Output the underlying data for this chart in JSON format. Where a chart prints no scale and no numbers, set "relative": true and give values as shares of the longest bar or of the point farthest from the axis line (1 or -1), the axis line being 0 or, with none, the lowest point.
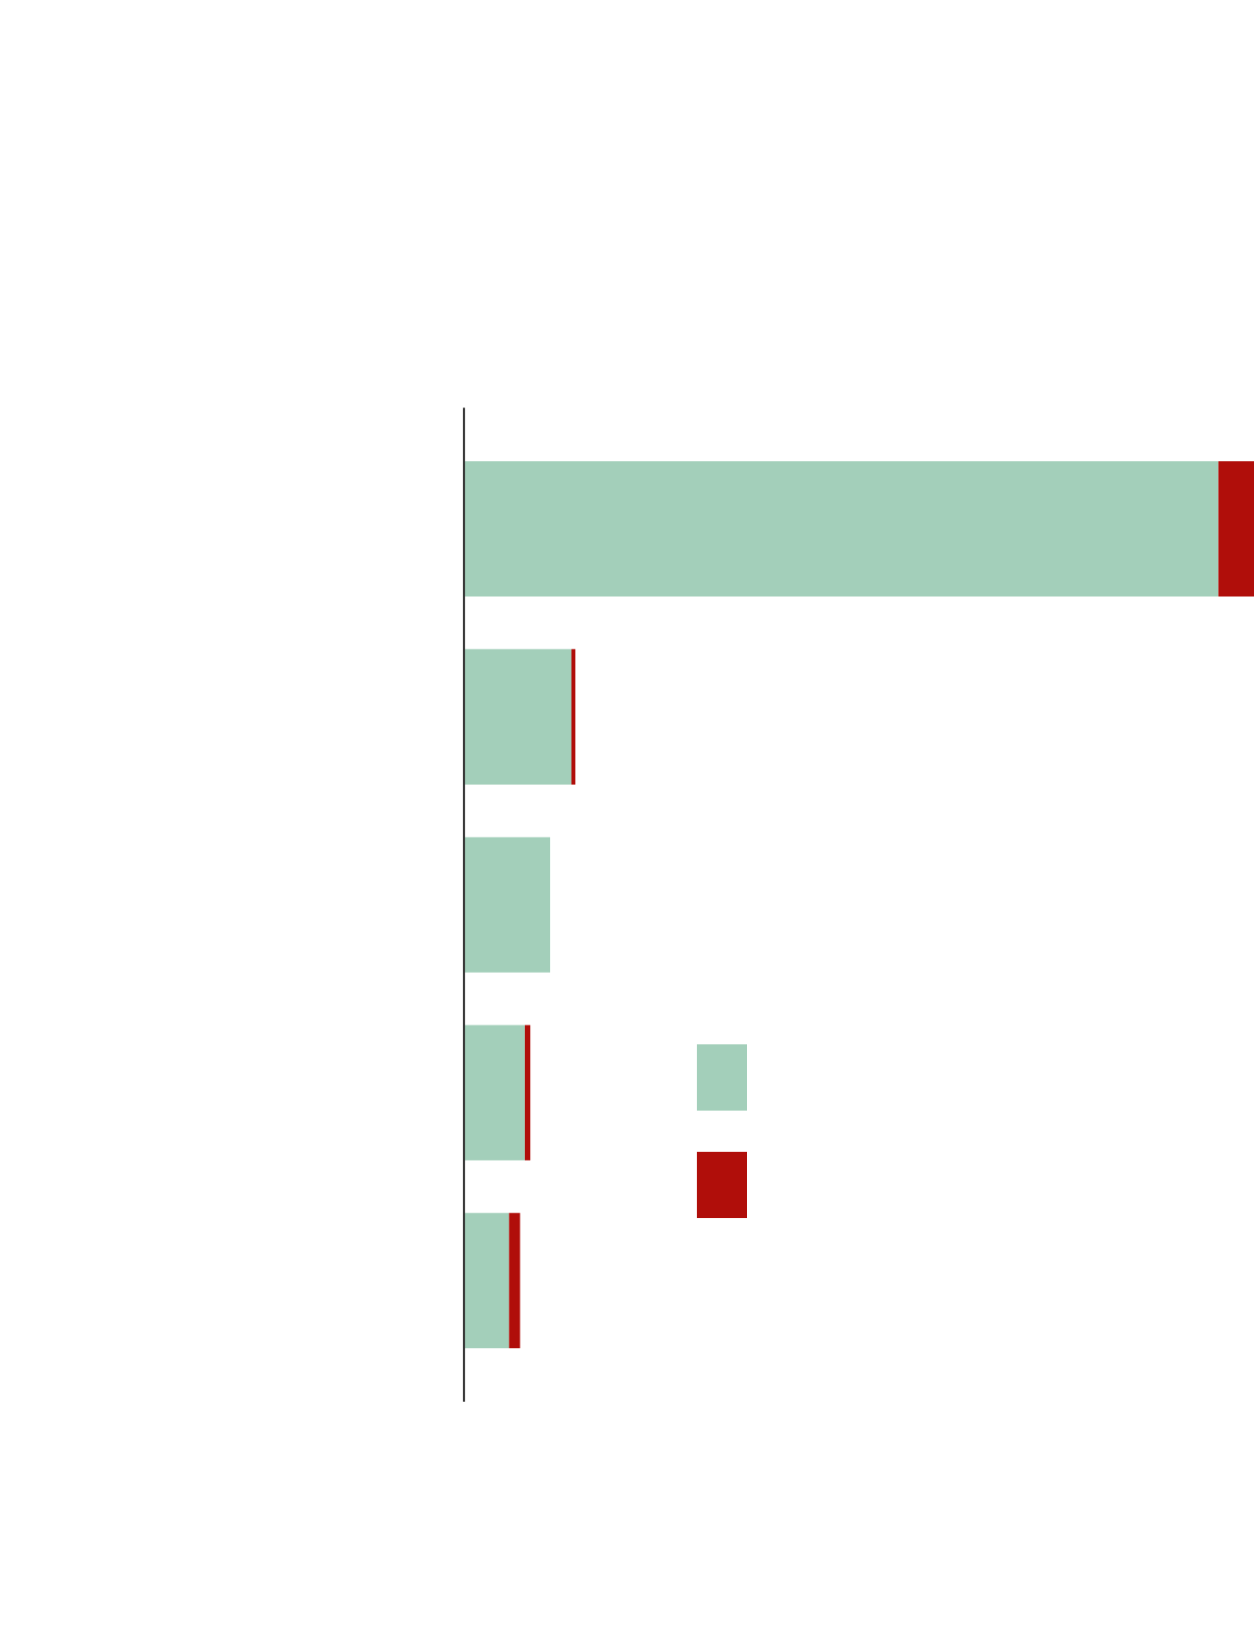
{
  "chart_data": {
    "type": "bar",
    "orientation": "horizontal",
    "stacked": true,
    "relative": true,
    "categories": [
      null,
      null,
      null,
      null,
      null
    ],
    "series": [
      {
        "color": "#a3cfba",
        "values": [
          0.955,
          0.136,
          0.109,
          0.077,
          0.057
        ]
      },
      {
        "color": "#b00e0a",
        "values": [
          0.045,
          0.005,
          0,
          0.007,
          0.014
        ]
      }
    ],
    "grid": false
  }
}
